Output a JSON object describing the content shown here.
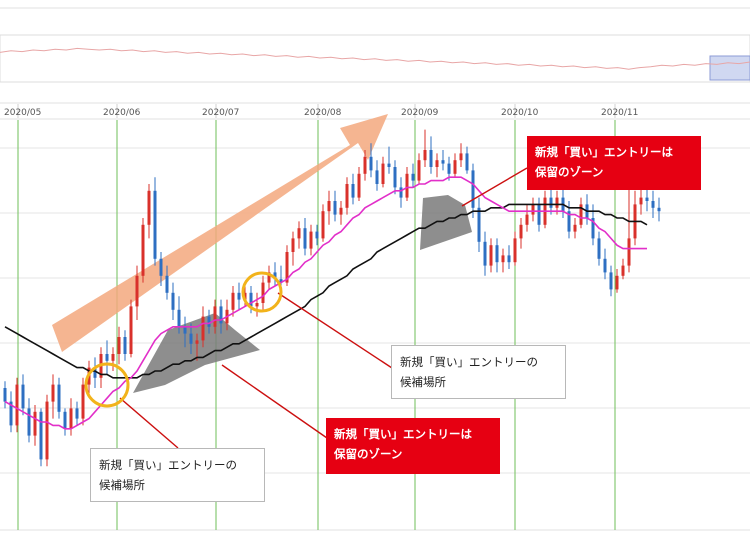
{
  "chart_data": {
    "type": "candlestick",
    "x_labels": [
      "2020/05",
      "2020/06",
      "2020/07",
      "2020/08",
      "2020/09",
      "2020/10",
      "2020/11"
    ],
    "ylim": [
      0,
      100
    ],
    "colors": {
      "up": "#d9312b",
      "down": "#2e6fc2",
      "ma_short": "#e22fc9",
      "ma_long": "#111111",
      "arrow": "#f3a87e",
      "highlight_circle": "#f2b31b",
      "zone_fill": "#7a7a7a",
      "callout_red": "#e60012",
      "month_gridline": "#6fbf5a",
      "overview_line": "#e8a6a6",
      "overview_selection": "#aab8e6"
    },
    "candles": [
      {
        "o": 30,
        "h": 32,
        "l": 24,
        "c": 26
      },
      {
        "o": 26,
        "h": 29,
        "l": 17,
        "c": 19
      },
      {
        "o": 19,
        "h": 33,
        "l": 17,
        "c": 31
      },
      {
        "o": 31,
        "h": 34,
        "l": 22,
        "c": 24
      },
      {
        "o": 24,
        "h": 27,
        "l": 14,
        "c": 16
      },
      {
        "o": 16,
        "h": 25,
        "l": 13,
        "c": 23
      },
      {
        "o": 23,
        "h": 24,
        "l": 7,
        "c": 9
      },
      {
        "o": 9,
        "h": 28,
        "l": 7,
        "c": 26
      },
      {
        "o": 26,
        "h": 34,
        "l": 21,
        "c": 31
      },
      {
        "o": 31,
        "h": 33,
        "l": 21,
        "c": 23
      },
      {
        "o": 23,
        "h": 24,
        "l": 16,
        "c": 18
      },
      {
        "o": 18,
        "h": 27,
        "l": 16,
        "c": 24
      },
      {
        "o": 24,
        "h": 26,
        "l": 19,
        "c": 21
      },
      {
        "o": 21,
        "h": 33,
        "l": 19,
        "c": 31
      },
      {
        "o": 31,
        "h": 38,
        "l": 28,
        "c": 36
      },
      {
        "o": 36,
        "h": 39,
        "l": 30,
        "c": 33
      },
      {
        "o": 33,
        "h": 42,
        "l": 30,
        "c": 40
      },
      {
        "o": 40,
        "h": 44,
        "l": 34,
        "c": 38
      },
      {
        "o": 38,
        "h": 42,
        "l": 35,
        "c": 40
      },
      {
        "o": 40,
        "h": 48,
        "l": 37,
        "c": 45
      },
      {
        "o": 45,
        "h": 47,
        "l": 38,
        "c": 40
      },
      {
        "o": 40,
        "h": 56,
        "l": 39,
        "c": 54
      },
      {
        "o": 54,
        "h": 66,
        "l": 50,
        "c": 63
      },
      {
        "o": 63,
        "h": 80,
        "l": 61,
        "c": 78
      },
      {
        "o": 78,
        "h": 90,
        "l": 74,
        "c": 88
      },
      {
        "o": 88,
        "h": 92,
        "l": 66,
        "c": 68
      },
      {
        "o": 68,
        "h": 70,
        "l": 60,
        "c": 63
      },
      {
        "o": 63,
        "h": 66,
        "l": 56,
        "c": 58
      },
      {
        "o": 58,
        "h": 61,
        "l": 50,
        "c": 53
      },
      {
        "o": 53,
        "h": 57,
        "l": 46,
        "c": 48
      },
      {
        "o": 48,
        "h": 51,
        "l": 42,
        "c": 46
      },
      {
        "o": 46,
        "h": 49,
        "l": 40,
        "c": 43
      },
      {
        "o": 43,
        "h": 46,
        "l": 38,
        "c": 44
      },
      {
        "o": 44,
        "h": 54,
        "l": 42,
        "c": 51
      },
      {
        "o": 51,
        "h": 53,
        "l": 46,
        "c": 48
      },
      {
        "o": 48,
        "h": 56,
        "l": 46,
        "c": 54
      },
      {
        "o": 54,
        "h": 56,
        "l": 46,
        "c": 49
      },
      {
        "o": 49,
        "h": 56,
        "l": 47,
        "c": 53
      },
      {
        "o": 53,
        "h": 60,
        "l": 51,
        "c": 58
      },
      {
        "o": 58,
        "h": 61,
        "l": 53,
        "c": 56
      },
      {
        "o": 56,
        "h": 60,
        "l": 54,
        "c": 58
      },
      {
        "o": 58,
        "h": 60,
        "l": 52,
        "c": 54
      },
      {
        "o": 54,
        "h": 58,
        "l": 51,
        "c": 55
      },
      {
        "o": 55,
        "h": 63,
        "l": 53,
        "c": 61
      },
      {
        "o": 61,
        "h": 66,
        "l": 59,
        "c": 64
      },
      {
        "o": 64,
        "h": 67,
        "l": 60,
        "c": 62
      },
      {
        "o": 62,
        "h": 66,
        "l": 59,
        "c": 61
      },
      {
        "o": 61,
        "h": 72,
        "l": 60,
        "c": 70
      },
      {
        "o": 70,
        "h": 76,
        "l": 66,
        "c": 74
      },
      {
        "o": 74,
        "h": 79,
        "l": 71,
        "c": 77
      },
      {
        "o": 77,
        "h": 80,
        "l": 69,
        "c": 71
      },
      {
        "o": 71,
        "h": 78,
        "l": 69,
        "c": 76
      },
      {
        "o": 76,
        "h": 78,
        "l": 72,
        "c": 74
      },
      {
        "o": 74,
        "h": 84,
        "l": 73,
        "c": 82
      },
      {
        "o": 82,
        "h": 88,
        "l": 78,
        "c": 85
      },
      {
        "o": 85,
        "h": 88,
        "l": 79,
        "c": 81
      },
      {
        "o": 81,
        "h": 85,
        "l": 78,
        "c": 83
      },
      {
        "o": 83,
        "h": 92,
        "l": 81,
        "c": 90
      },
      {
        "o": 90,
        "h": 93,
        "l": 84,
        "c": 86
      },
      {
        "o": 86,
        "h": 95,
        "l": 85,
        "c": 93
      },
      {
        "o": 93,
        "h": 100,
        "l": 91,
        "c": 98
      },
      {
        "o": 98,
        "h": 102,
        "l": 92,
        "c": 94
      },
      {
        "o": 94,
        "h": 97,
        "l": 88,
        "c": 90
      },
      {
        "o": 90,
        "h": 98,
        "l": 89,
        "c": 96
      },
      {
        "o": 96,
        "h": 101,
        "l": 93,
        "c": 95
      },
      {
        "o": 95,
        "h": 97,
        "l": 87,
        "c": 89
      },
      {
        "o": 89,
        "h": 92,
        "l": 83,
        "c": 86
      },
      {
        "o": 86,
        "h": 95,
        "l": 85,
        "c": 93
      },
      {
        "o": 93,
        "h": 96,
        "l": 89,
        "c": 91
      },
      {
        "o": 91,
        "h": 99,
        "l": 90,
        "c": 97
      },
      {
        "o": 97,
        "h": 106,
        "l": 95,
        "c": 100
      },
      {
        "o": 100,
        "h": 104,
        "l": 93,
        "c": 95
      },
      {
        "o": 95,
        "h": 99,
        "l": 92,
        "c": 97
      },
      {
        "o": 97,
        "h": 100,
        "l": 94,
        "c": 96
      },
      {
        "o": 96,
        "h": 98,
        "l": 91,
        "c": 93
      },
      {
        "o": 93,
        "h": 99,
        "l": 92,
        "c": 97
      },
      {
        "o": 97,
        "h": 102,
        "l": 95,
        "c": 99
      },
      {
        "o": 99,
        "h": 101,
        "l": 93,
        "c": 94
      },
      {
        "o": 94,
        "h": 96,
        "l": 80,
        "c": 83
      },
      {
        "o": 83,
        "h": 86,
        "l": 70,
        "c": 73
      },
      {
        "o": 73,
        "h": 76,
        "l": 63,
        "c": 66
      },
      {
        "o": 66,
        "h": 74,
        "l": 64,
        "c": 72
      },
      {
        "o": 72,
        "h": 74,
        "l": 64,
        "c": 67
      },
      {
        "o": 67,
        "h": 71,
        "l": 64,
        "c": 69
      },
      {
        "o": 69,
        "h": 72,
        "l": 65,
        "c": 67
      },
      {
        "o": 67,
        "h": 76,
        "l": 66,
        "c": 74
      },
      {
        "o": 74,
        "h": 80,
        "l": 71,
        "c": 78
      },
      {
        "o": 78,
        "h": 84,
        "l": 76,
        "c": 81
      },
      {
        "o": 81,
        "h": 86,
        "l": 79,
        "c": 84
      },
      {
        "o": 84,
        "h": 86,
        "l": 76,
        "c": 78
      },
      {
        "o": 78,
        "h": 88,
        "l": 77,
        "c": 86
      },
      {
        "o": 86,
        "h": 89,
        "l": 81,
        "c": 83
      },
      {
        "o": 83,
        "h": 88,
        "l": 81,
        "c": 86
      },
      {
        "o": 86,
        "h": 89,
        "l": 80,
        "c": 82
      },
      {
        "o": 82,
        "h": 85,
        "l": 74,
        "c": 76
      },
      {
        "o": 76,
        "h": 80,
        "l": 74,
        "c": 78
      },
      {
        "o": 78,
        "h": 86,
        "l": 77,
        "c": 84
      },
      {
        "o": 84,
        "h": 87,
        "l": 78,
        "c": 80
      },
      {
        "o": 80,
        "h": 84,
        "l": 72,
        "c": 74
      },
      {
        "o": 74,
        "h": 76,
        "l": 66,
        "c": 68
      },
      {
        "o": 68,
        "h": 71,
        "l": 62,
        "c": 64
      },
      {
        "o": 64,
        "h": 66,
        "l": 57,
        "c": 59
      },
      {
        "o": 59,
        "h": 65,
        "l": 58,
        "c": 63
      },
      {
        "o": 63,
        "h": 68,
        "l": 62,
        "c": 66
      },
      {
        "o": 66,
        "h": 93,
        "l": 64,
        "c": 74
      },
      {
        "o": 74,
        "h": 88,
        "l": 72,
        "c": 84
      },
      {
        "o": 84,
        "h": 90,
        "l": 81,
        "c": 86
      },
      {
        "o": 86,
        "h": 89,
        "l": 82,
        "c": 85
      },
      {
        "o": 85,
        "h": 88,
        "l": 80,
        "c": 83
      },
      {
        "o": 83,
        "h": 86,
        "l": 79,
        "c": 82
      }
    ],
    "ma_short": [
      26,
      25,
      24,
      23,
      22,
      21,
      20,
      20,
      19,
      19,
      18,
      18,
      19,
      20,
      21,
      23,
      25,
      27,
      29,
      30,
      32,
      33,
      35,
      38,
      41,
      44,
      46,
      47,
      48,
      48,
      48,
      48,
      48,
      49,
      49,
      50,
      50,
      51,
      52,
      53,
      54,
      55,
      56,
      57,
      59,
      60,
      61,
      62,
      64,
      65,
      67,
      68,
      70,
      72,
      73,
      75,
      76,
      78,
      80,
      81,
      83,
      84,
      85,
      86,
      87,
      88,
      88,
      89,
      89,
      90,
      90,
      91,
      91,
      91,
      92,
      92,
      92,
      91,
      90,
      88,
      86,
      85,
      84,
      83,
      82,
      82,
      82,
      82,
      82,
      82,
      82,
      82,
      82,
      82,
      81,
      81,
      80,
      80,
      79,
      77,
      76,
      74,
      72,
      71,
      71,
      71,
      71,
      71
    ],
    "ma_long": [
      48,
      47,
      46,
      45,
      44,
      43,
      42,
      41,
      40,
      39,
      38,
      37,
      36,
      36,
      35,
      35,
      34,
      34,
      33,
      33,
      33,
      33,
      33,
      34,
      34,
      35,
      35,
      36,
      37,
      37,
      38,
      38,
      39,
      39,
      40,
      41,
      41,
      42,
      43,
      43,
      44,
      45,
      46,
      47,
      48,
      49,
      50,
      51,
      52,
      53,
      54,
      56,
      57,
      58,
      60,
      61,
      62,
      63,
      65,
      66,
      67,
      68,
      70,
      71,
      72,
      73,
      74,
      75,
      76,
      77,
      77,
      78,
      79,
      79,
      80,
      80,
      81,
      81,
      82,
      82,
      82,
      83,
      83,
      83,
      84,
      84,
      84,
      84,
      84,
      84,
      84,
      84,
      84,
      84,
      83,
      83,
      83,
      82,
      82,
      82,
      81,
      81,
      80,
      80,
      79,
      79,
      79,
      78
    ],
    "overview_series": [
      52,
      54,
      53,
      55,
      54,
      56,
      55,
      57,
      56,
      55,
      56,
      54,
      55,
      53,
      54,
      52,
      53,
      51,
      52,
      50,
      51,
      49,
      50,
      48,
      49,
      47,
      48,
      46,
      47,
      45,
      46,
      44,
      45,
      43,
      44,
      42,
      43,
      41,
      42,
      40,
      41,
      39,
      40,
      38,
      39,
      37,
      38,
      36,
      37,
      35,
      36,
      34,
      35,
      33,
      34,
      32,
      33,
      31,
      33,
      34,
      36,
      35,
      37,
      36,
      38,
      37,
      39,
      38,
      40
    ]
  },
  "annotations": {
    "callout_top_right": {
      "line1": "新規「買い」エントリーは",
      "line2": "保留のゾーン"
    },
    "callout_mid_right": {
      "line1": "新規「買い」エントリーの",
      "line2": "候補場所"
    },
    "callout_bottom_mid": {
      "line1": "新規「買い」エントリーは",
      "line2": "保留のゾーン"
    },
    "callout_bottom_left": {
      "line1": "新規「買い」エントリーの",
      "line2": "候補場所"
    }
  }
}
